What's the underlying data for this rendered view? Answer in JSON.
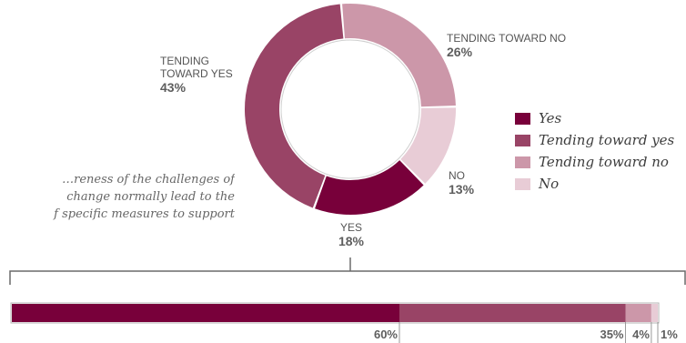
{
  "chart_data": [
    {
      "type": "pie",
      "title": "",
      "categories": [
        "Yes",
        "Tending toward yes",
        "Tending toward no",
        "No"
      ],
      "values": [
        18,
        43,
        26,
        13
      ],
      "slice_labels": [
        {
          "name": "YES",
          "pct": "18%"
        },
        {
          "name": "TENDING TOWARD YES",
          "pct": "43%"
        },
        {
          "name": "TENDING TOWARD NO",
          "pct": "26%"
        },
        {
          "name": "NO",
          "pct": "13%"
        }
      ],
      "colors": [
        "#78003a",
        "#994466",
        "#cc97a9",
        "#e8ccd6"
      ],
      "legend": {
        "position": "right",
        "entries": [
          "Yes",
          "Tending toward yes",
          "Tending toward no",
          "No"
        ]
      },
      "style": "donut"
    },
    {
      "type": "bar",
      "orientation": "horizontal-stacked",
      "categories": [
        "Yes",
        "Tending toward yes",
        "Tending toward no",
        "No"
      ],
      "values": [
        60,
        35,
        4,
        1
      ],
      "labels": [
        "60%",
        "35%",
        "4%",
        "1%"
      ],
      "colors": [
        "#78003a",
        "#994466",
        "#cc97a9",
        "#e8ccd6"
      ]
    }
  ],
  "question_lines": [
    "…reness of the challenges of",
    "change normally lead to the",
    "f specific measures to support"
  ]
}
